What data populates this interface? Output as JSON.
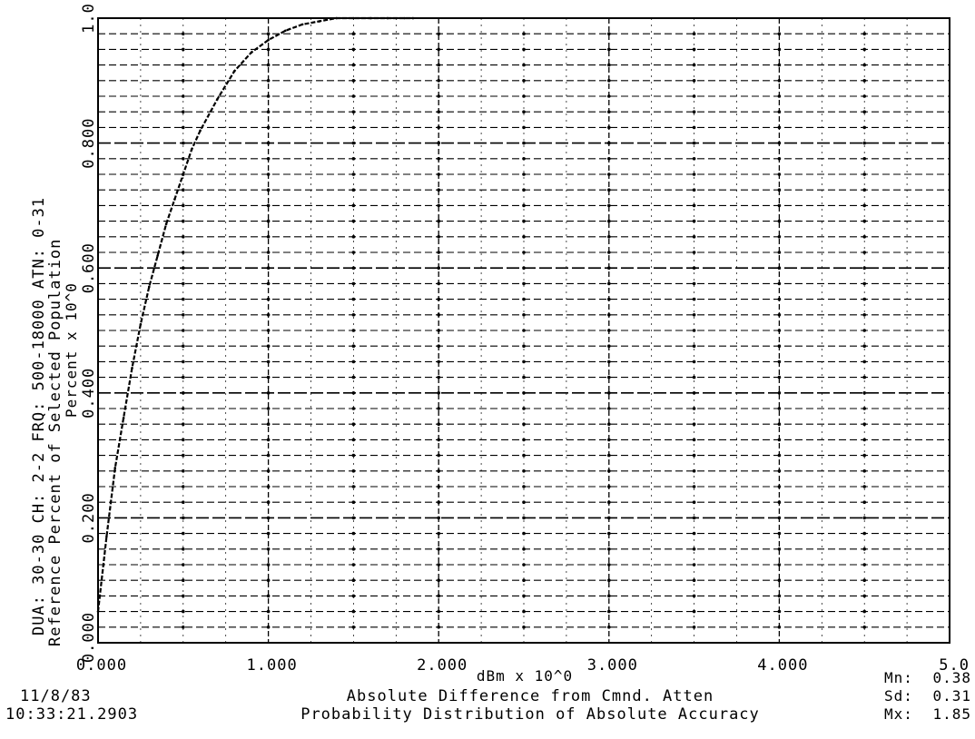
{
  "chart_data": {
    "type": "line",
    "title": "Probability Distribution of Absolute Accuracy",
    "subtitle": "Absolute Difference from Cmnd. Atten",
    "xlabel": "dBm x 10^0",
    "ylabel_line1": "Reference Percent of Selected Population",
    "ylabel_line2": "Percent x 10^0",
    "header": "DUA: 30-30   CH: 2-2   FRQ:   500-18000   ATN:   0-31",
    "xlim": [
      0,
      5
    ],
    "ylim": [
      0,
      1
    ],
    "x_tick_labels": [
      "0.000",
      "1.000",
      "2.000",
      "3.000",
      "4.000",
      "5.0"
    ],
    "y_tick_labels": [
      "0.000",
      "0.200",
      "0.400",
      "0.600",
      "0.800",
      "1.0"
    ],
    "grid": true,
    "series": [
      {
        "color": "#000000",
        "x": [
          0.0,
          0.05,
          0.1,
          0.15,
          0.2,
          0.25,
          0.3,
          0.35,
          0.4,
          0.45,
          0.5,
          0.55,
          0.6,
          0.7,
          0.8,
          0.9,
          1.0,
          1.1,
          1.2,
          1.3,
          1.4,
          1.5,
          1.6,
          1.7,
          1.8,
          1.85
        ],
        "y": [
          0.05,
          0.17,
          0.28,
          0.36,
          0.44,
          0.51,
          0.57,
          0.62,
          0.67,
          0.71,
          0.75,
          0.79,
          0.82,
          0.87,
          0.915,
          0.945,
          0.965,
          0.98,
          0.99,
          0.995,
          1.0,
          1.0,
          1.0,
          1.0,
          1.0,
          1.0
        ]
      }
    ]
  },
  "footer": {
    "date": "11/8/83",
    "time": "10:33:21.2903",
    "stats": [
      {
        "label": "Mn:",
        "value": "0.38"
      },
      {
        "label": "Sd:",
        "value": "0.31"
      },
      {
        "label": "Mx:",
        "value": "1.85"
      }
    ]
  }
}
